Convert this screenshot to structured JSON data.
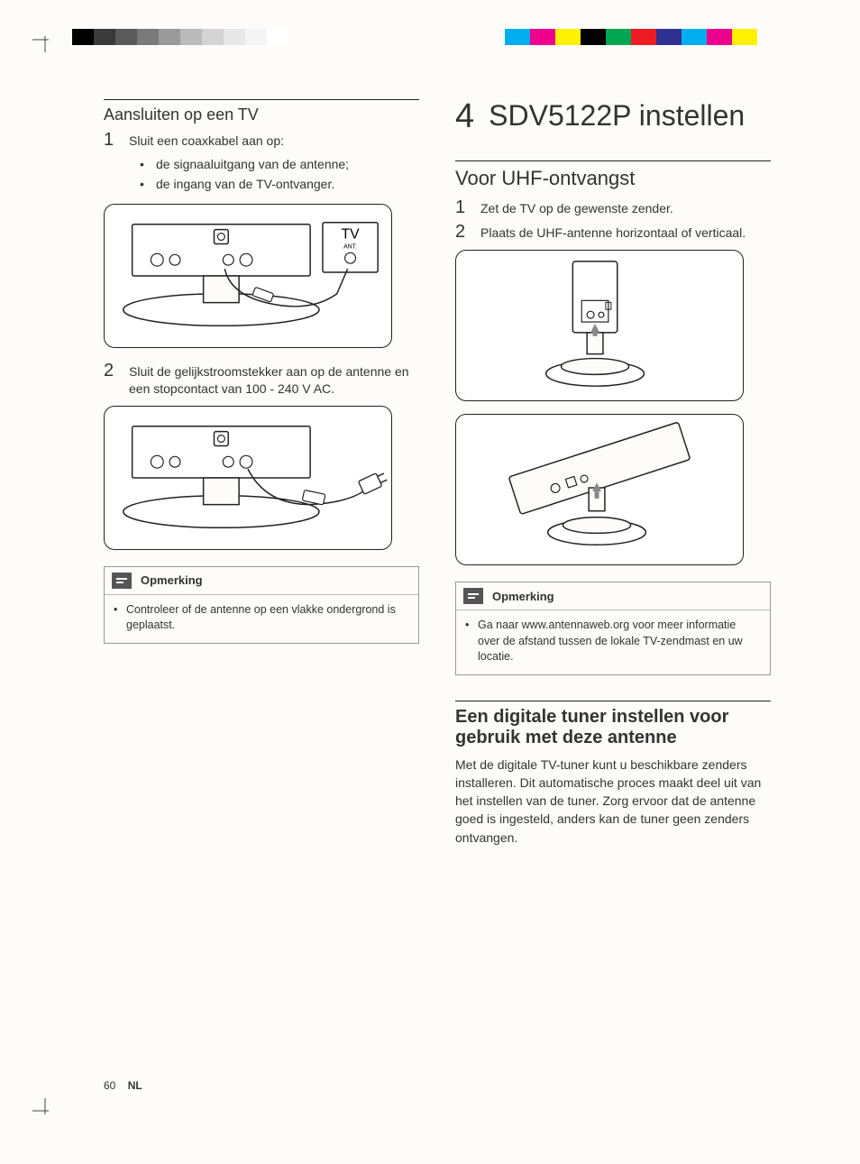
{
  "registration": {
    "left_colors": [
      "#000000",
      "#3a3a3a",
      "#5a5a5a",
      "#7a7a7a",
      "#9a9a9a",
      "#bababa",
      "#d4d4d4",
      "#e8e8e8",
      "#f4f4f4",
      "#ffffff"
    ],
    "right_colors": [
      "#00aeef",
      "#ec008c",
      "#fff200",
      "#000000",
      "#00a651",
      "#ed1c24",
      "#2e3192",
      "#00aeef",
      "#ec008c",
      "#fff200"
    ]
  },
  "left_column": {
    "h3": "Aansluiten op een TV",
    "step1_num": "1",
    "step1_text": "Sluit een coaxkabel aan op:",
    "step1_bullets": [
      "de signaaluitgang van de antenne;",
      "de ingang van de TV-ontvanger."
    ],
    "step2_num": "2",
    "step2_text": "Sluit de gelijkstroomstekker aan op de antenne en een stopcontact van 100 - 240 V AC.",
    "note_label": "Opmerking",
    "note_items": [
      "Controleer of de antenne op een vlakke ondergrond is geplaatst."
    ]
  },
  "right_column": {
    "chapter_num": "4",
    "chapter_title": "SDV5122P instellen",
    "section1_h2": "Voor UHF-ontvangst",
    "section1_step1_num": "1",
    "section1_step1_text": "Zet de TV op de gewenste zender.",
    "section1_step2_num": "2",
    "section1_step2_text": "Plaats de UHF-antenne horizontaal of verticaal.",
    "note_label": "Opmerking",
    "note_items": [
      "Ga naar www.antennaweb.org voor meer informatie over de afstand tussen de lokale TV-zendmast en uw locatie."
    ],
    "section2_h2": "Een digitale tuner instellen voor gebruik met deze antenne",
    "section2_body": "Met de digitale TV-tuner kunt u beschikbare zenders installeren. Dit automatische proces maakt deel uit van het instellen van de tuner. Zorg ervoor dat de antenne goed is ingesteld, anders kan de tuner geen zenders ontvangen."
  },
  "figure_labels": {
    "tv": "TV",
    "ant": "ANT."
  },
  "footer": {
    "page_num": "60",
    "lang": "NL"
  }
}
